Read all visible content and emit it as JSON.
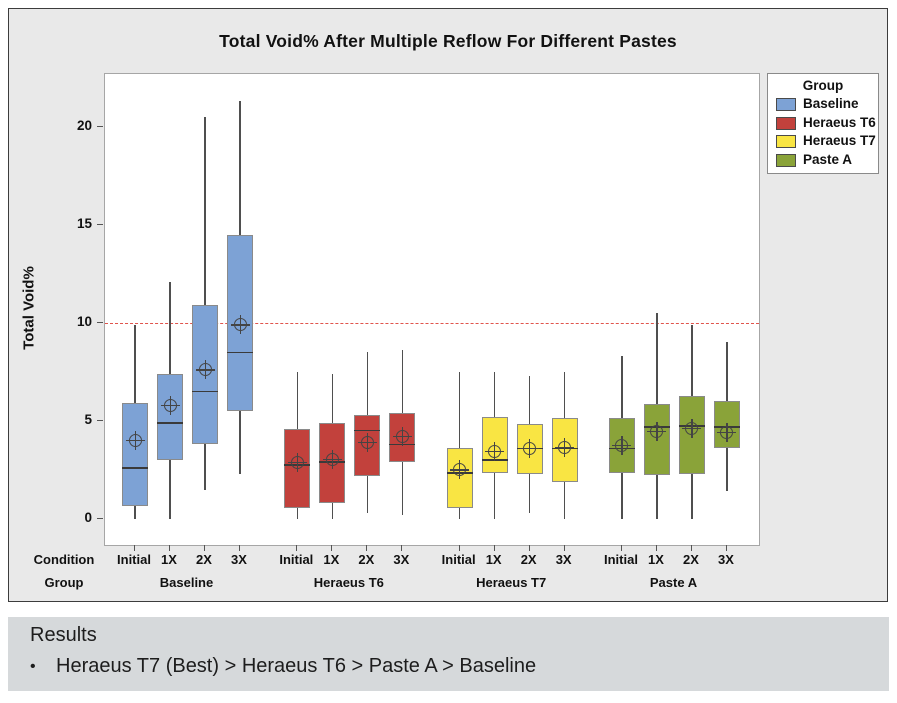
{
  "title": "Total Void% After Multiple Reflow For Different Pastes",
  "y_axis": {
    "label": "Total Void%",
    "ticks": [
      0,
      5,
      10,
      15,
      20
    ]
  },
  "x_axis": {
    "condition_header": "Condition",
    "group_header": "Group"
  },
  "legend": {
    "title": "Group",
    "items": [
      {
        "label": "Baseline",
        "color": "#7da2d5"
      },
      {
        "label": "Heraeus T6",
        "color": "#c2413c"
      },
      {
        "label": "Heraeus T7",
        "color": "#f9e543"
      },
      {
        "label": "Paste A",
        "color": "#8aa339"
      }
    ]
  },
  "chart_data": {
    "type": "boxplot",
    "title": "Total Void% After Multiple Reflow For Different Pastes",
    "xlabel": "",
    "ylabel": "Total Void%",
    "ylim": [
      -1.33,
      22.7
    ],
    "grid": false,
    "legend_position": "top-right",
    "reference_line": {
      "y": 10,
      "style": "dashed",
      "color": "#e0544c"
    },
    "conditions": [
      "Initial",
      "1X",
      "2X",
      "3X"
    ],
    "groups": [
      {
        "name": "Baseline",
        "color": "#7da2d5",
        "boxes": [
          {
            "condition": "Initial",
            "low": 0.0,
            "q1": 0.65,
            "median": 2.6,
            "q3": 5.9,
            "high": 9.9,
            "mean": 4.0
          },
          {
            "condition": "1X",
            "low": 0.0,
            "q1": 3.0,
            "median": 4.9,
            "q3": 7.4,
            "high": 12.1,
            "mean": 5.8
          },
          {
            "condition": "2X",
            "low": 1.5,
            "q1": 3.8,
            "median": 6.5,
            "q3": 10.9,
            "high": 20.5,
            "mean": 7.6
          },
          {
            "condition": "3X",
            "low": 2.3,
            "q1": 5.5,
            "median": 8.5,
            "q3": 14.5,
            "high": 21.3,
            "mean": 9.9
          }
        ]
      },
      {
        "name": "Heraeus T6",
        "color": "#c2413c",
        "boxes": [
          {
            "condition": "Initial",
            "low": 0.0,
            "q1": 0.55,
            "median": 2.75,
            "q3": 4.6,
            "high": 7.5,
            "mean": 2.9
          },
          {
            "condition": "1X",
            "low": 0.0,
            "q1": 0.8,
            "median": 2.9,
            "q3": 4.9,
            "high": 7.4,
            "mean": 3.05
          },
          {
            "condition": "2X",
            "low": 0.3,
            "q1": 2.2,
            "median": 4.5,
            "q3": 5.3,
            "high": 8.5,
            "mean": 3.9
          },
          {
            "condition": "3X",
            "low": 0.2,
            "q1": 2.9,
            "median": 3.8,
            "q3": 5.4,
            "high": 8.6,
            "mean": 4.2
          }
        ]
      },
      {
        "name": "Heraeus T7",
        "color": "#f9e543",
        "boxes": [
          {
            "condition": "Initial",
            "low": 0.0,
            "q1": 0.55,
            "median": 2.35,
            "q3": 3.6,
            "high": 7.5,
            "mean": 2.5
          },
          {
            "condition": "1X",
            "low": 0.0,
            "q1": 2.35,
            "median": 3.0,
            "q3": 5.2,
            "high": 7.5,
            "mean": 3.45
          },
          {
            "condition": "2X",
            "low": 0.3,
            "q1": 2.3,
            "median": 3.6,
            "q3": 4.85,
            "high": 7.3,
            "mean": 3.6
          },
          {
            "condition": "3X",
            "low": 0.0,
            "q1": 1.9,
            "median": 3.6,
            "q3": 5.15,
            "high": 7.5,
            "mean": 3.65
          }
        ]
      },
      {
        "name": "Paste A",
        "color": "#8aa339",
        "boxes": [
          {
            "condition": "Initial",
            "low": 0.0,
            "q1": 2.35,
            "median": 3.6,
            "q3": 5.15,
            "high": 8.3,
            "mean": 3.75
          },
          {
            "condition": "1X",
            "low": 0.0,
            "q1": 2.25,
            "median": 4.7,
            "q3": 5.85,
            "high": 10.5,
            "mean": 4.45
          },
          {
            "condition": "2X",
            "low": 0.0,
            "q1": 2.3,
            "median": 4.75,
            "q3": 6.25,
            "high": 9.9,
            "mean": 4.6
          },
          {
            "condition": "3X",
            "low": 1.4,
            "q1": 3.6,
            "median": 4.7,
            "q3": 6.0,
            "high": 9.05,
            "mean": 4.4
          }
        ]
      }
    ]
  },
  "results": {
    "heading": "Results",
    "bullet_marker": "•",
    "bullet_text": "Heraeus T7 (Best) > Heraeus T6 > Paste A > Baseline"
  }
}
